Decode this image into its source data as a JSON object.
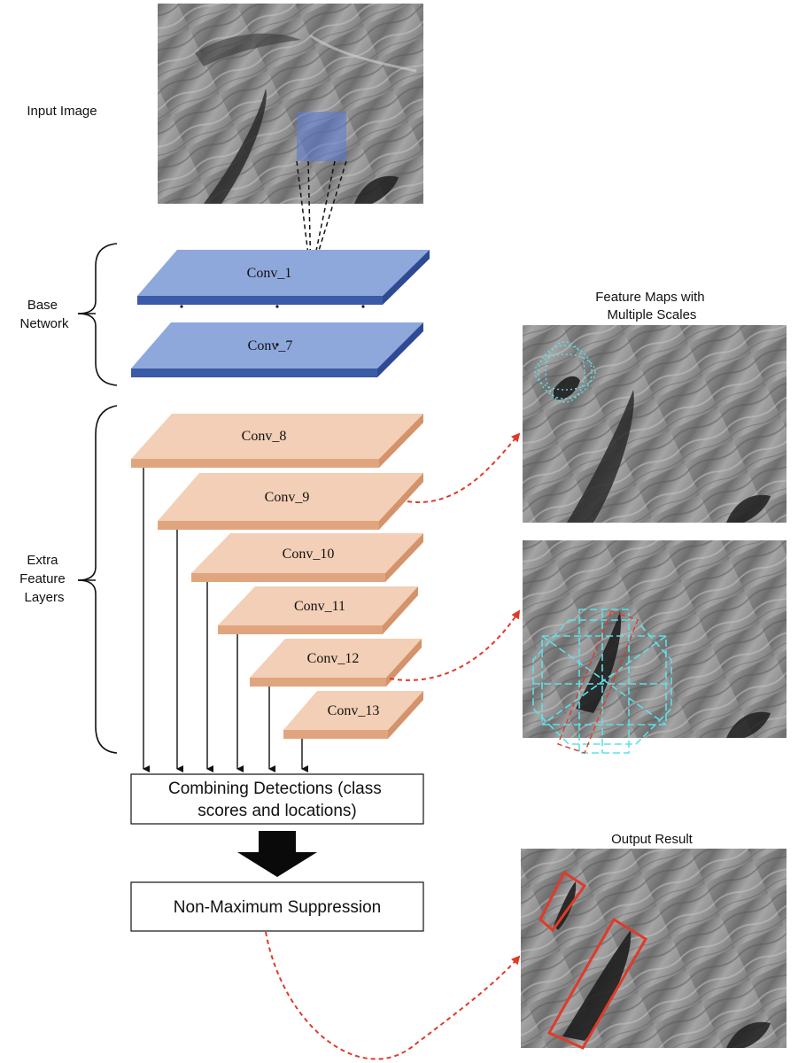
{
  "labels": {
    "input_image": "Input Image",
    "base_network": [
      "Base",
      "Network"
    ],
    "extra_layers": [
      "Extra",
      "Feature",
      "Layers"
    ],
    "feature_maps_title": [
      "Feature Maps with",
      "Multiple Scales"
    ],
    "output_title": "Output Result"
  },
  "base_layers": [
    "Conv_1",
    "Conv_7"
  ],
  "extra_layers": [
    "Conv_8",
    "Conv_9",
    "Conv_10",
    "Conv_11",
    "Conv_12",
    "Conv_13"
  ],
  "combine_box": [
    "Combining Detections (class",
    "scores and locations)"
  ],
  "nms_box": "Non-Maximum Suppression",
  "colors": {
    "base_top": "#8fa8dc",
    "base_edge": "#3b5aa7",
    "extra_top": "#f2cfb6",
    "extra_edge": "#e0a57f",
    "red_dash": "#e03a2a",
    "cyan_box": "#5fe0e8",
    "detection_box": "#e03a2a",
    "input_patch": "#5a78d8"
  }
}
